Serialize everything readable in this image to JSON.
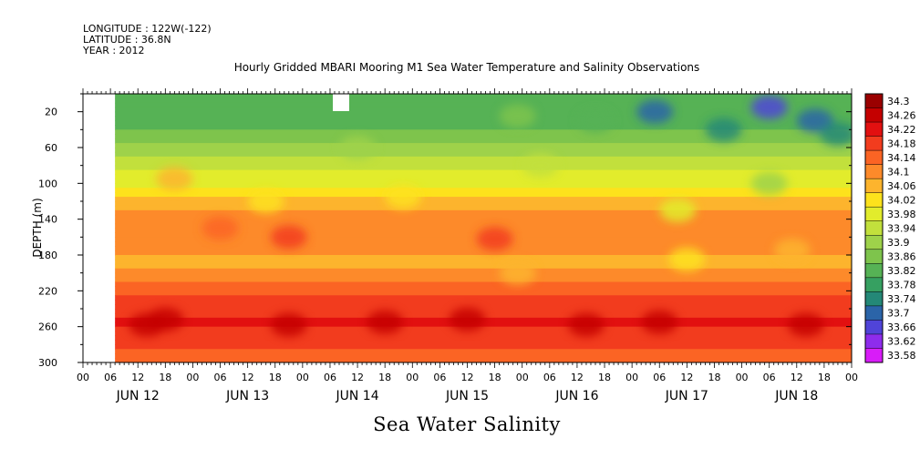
{
  "header": {
    "longitude": "LONGITUDE : 122W(-122)",
    "latitude": "LATITUDE : 36.8N",
    "year": "YEAR : 2012"
  },
  "chart_data": {
    "type": "heatmap",
    "title": "Hourly Gridded MBARI Mooring M1 Sea Water Temperature and Salinity Observations",
    "xlabel": "Sea Water Salinity",
    "ylabel": "DEPTH (m)",
    "y_ticks": [
      20,
      60,
      100,
      140,
      180,
      220,
      260,
      300
    ],
    "ylim": [
      300,
      0
    ],
    "x_hour_ticks": [
      "00",
      "06",
      "12",
      "18",
      "00",
      "06",
      "12",
      "18",
      "00",
      "06",
      "12",
      "18",
      "00",
      "06",
      "12",
      "18",
      "00",
      "06",
      "12",
      "18",
      "00",
      "06",
      "12",
      "18",
      "00",
      "06",
      "12",
      "18",
      "00"
    ],
    "x_day_labels": [
      "JUN 12",
      "JUN 13",
      "JUN 14",
      "JUN 15",
      "JUN 16",
      "JUN 17",
      "JUN 18"
    ],
    "data_start_hour": 7,
    "colorbar": {
      "levels": [
        34.3,
        34.26,
        34.22,
        34.18,
        34.14,
        34.1,
        34.06,
        34.02,
        33.98,
        33.94,
        33.9,
        33.86,
        33.82,
        33.78,
        33.74,
        33.7,
        33.66,
        33.62,
        33.58
      ],
      "colors": [
        "#9a0000",
        "#c40000",
        "#e21010",
        "#f23c1e",
        "#fb6424",
        "#fd8a2a",
        "#fdb42d",
        "#fde21c",
        "#e2ec2c",
        "#c2e03c",
        "#9ed24a",
        "#7ec44c",
        "#56b255",
        "#36a061",
        "#248877",
        "#2b64a8",
        "#5044d8",
        "#8e2cec",
        "#d81cf8"
      ]
    },
    "depth_profile": [
      {
        "depth": 5,
        "value": 33.84
      },
      {
        "depth": 40,
        "value": 33.86
      },
      {
        "depth": 80,
        "value": 33.96
      },
      {
        "depth": 110,
        "value": 34.04
      },
      {
        "depth": 140,
        "value": 34.14
      },
      {
        "depth": 160,
        "value": 34.12
      },
      {
        "depth": 190,
        "value": 34.09
      },
      {
        "depth": 225,
        "value": 34.18
      },
      {
        "depth": 255,
        "value": 34.23
      },
      {
        "depth": 285,
        "value": 34.18
      },
      {
        "depth": 300,
        "value": 34.15
      }
    ]
  }
}
